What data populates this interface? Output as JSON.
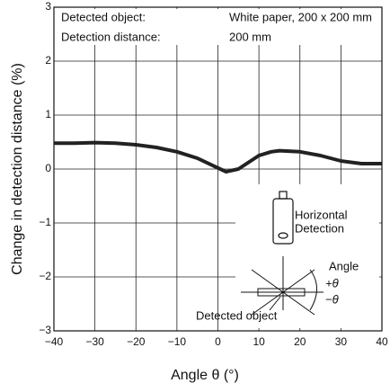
{
  "chart_data": {
    "type": "line",
    "xlabel": "Angle θ (°)",
    "ylabel": "Change in detection distance  (%)",
    "x": [
      -40,
      -35,
      -30,
      -25,
      -20,
      -15,
      -10,
      -5,
      0,
      2,
      5,
      8,
      10,
      13,
      15,
      20,
      25,
      30,
      35,
      40
    ],
    "series": [
      {
        "color": "#222222",
        "values": [
          0.48,
          0.48,
          0.49,
          0.48,
          0.45,
          0.4,
          0.32,
          0.2,
          0.02,
          -0.05,
          0.0,
          0.15,
          0.25,
          0.32,
          0.34,
          0.32,
          0.25,
          0.15,
          0.1,
          0.1
        ]
      }
    ],
    "xlim": [
      -40,
      40
    ],
    "xticks": [
      {
        "value": -40,
        "label": "−40"
      },
      {
        "value": -30,
        "label": "−30"
      },
      {
        "value": -20,
        "label": "−20"
      },
      {
        "value": -10,
        "label": "−10"
      },
      0,
      10,
      20,
      30,
      40
    ],
    "ylim": [
      -3,
      3
    ],
    "yticks": [
      {
        "value": -3,
        "label": "−3"
      },
      {
        "value": -2,
        "label": "−2"
      },
      {
        "value": -1,
        "label": "−1"
      },
      0,
      1,
      2,
      3
    ],
    "grid": true,
    "annotations": [
      "Detected object:",
      "White paper, 200 x 200 mm",
      "Detection distance:",
      "200 mm",
      "Horizontal",
      "Detection",
      "Angle",
      "+θ",
      "−θ",
      "Detected object"
    ]
  }
}
